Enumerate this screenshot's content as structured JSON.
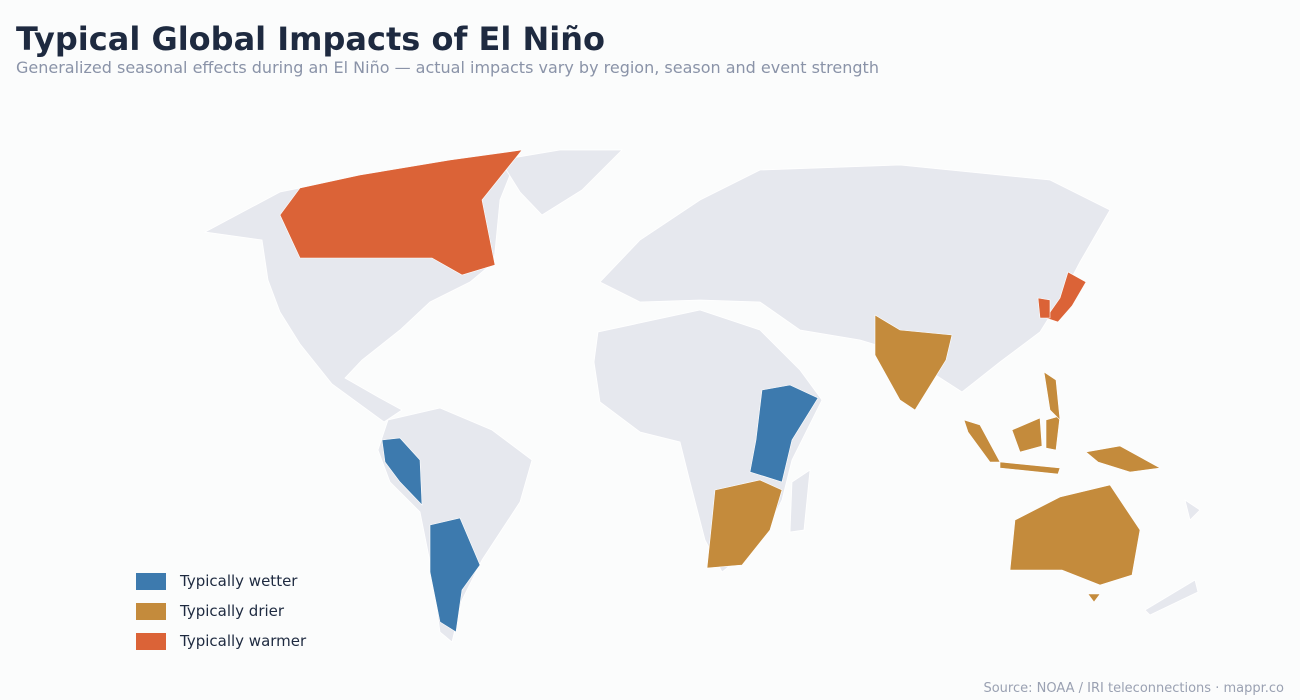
{
  "header": {
    "title": "Typical Global Impacts of El Niño",
    "subtitle": "Generalized seasonal effects during an El Niño — actual impacts vary by region, season and event strength"
  },
  "legend": [
    {
      "name": "Typically wetter",
      "color": "#3d7aae"
    },
    {
      "name": "Typically drier",
      "color": "#c48b3c"
    },
    {
      "name": "Typically warmer",
      "color": "#db6337"
    }
  ],
  "footer": {
    "source": "Source: NOAA / IRI teleconnections  ·  mappr.co"
  }
}
